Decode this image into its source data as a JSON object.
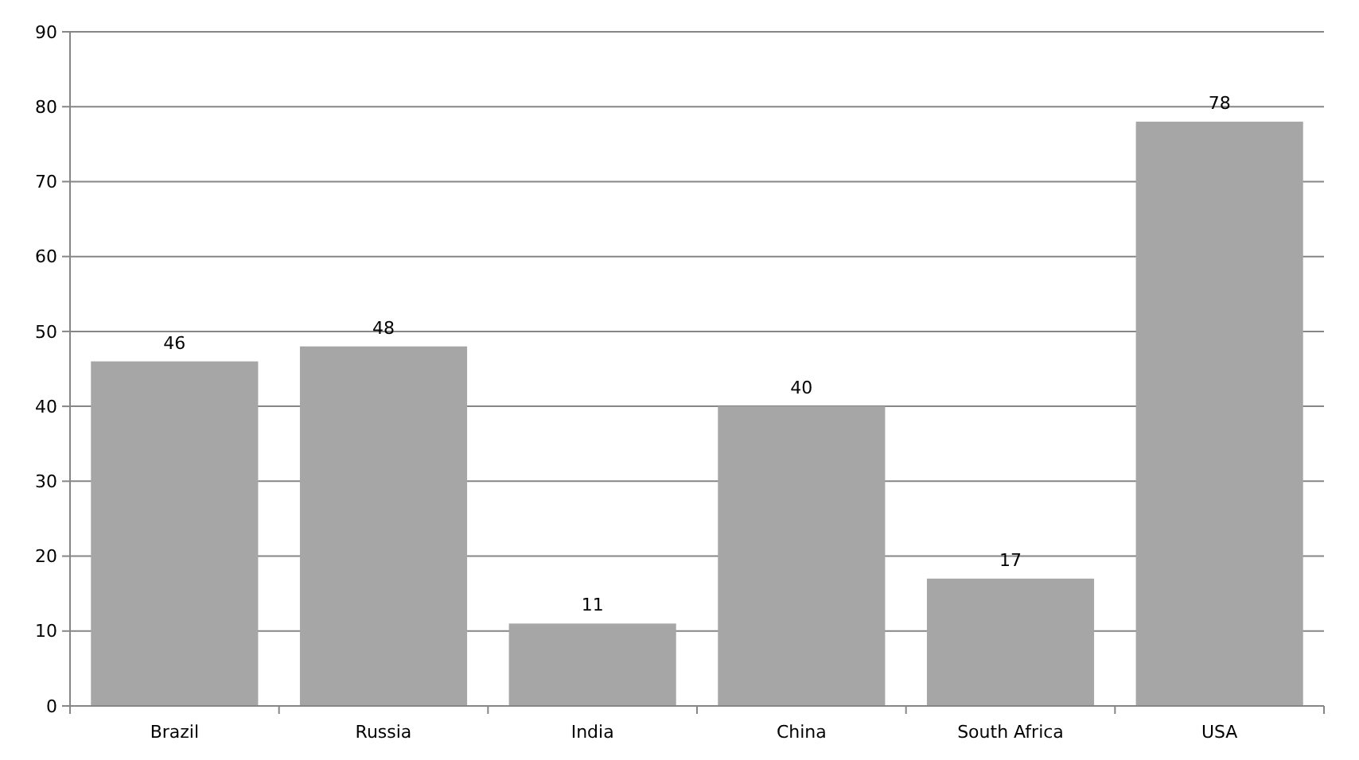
{
  "chart_data": {
    "type": "bar",
    "categories": [
      "Brazil",
      "Russia",
      "India",
      "China",
      "South Africa",
      "USA"
    ],
    "values": [
      46,
      48,
      11,
      40,
      17,
      78
    ],
    "color": "#a6a6a6",
    "data_labels": true,
    "ylim": [
      0,
      90
    ],
    "yticks": [
      0,
      10,
      20,
      30,
      40,
      50,
      60,
      70,
      80,
      90
    ],
    "grid": "y"
  }
}
